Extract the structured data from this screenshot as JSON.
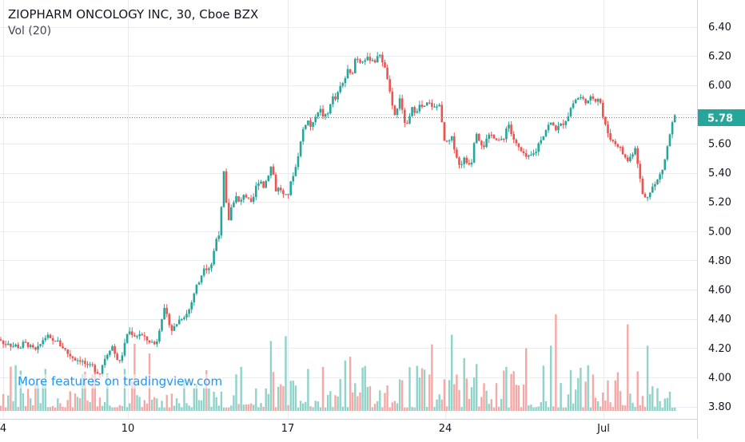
{
  "header": {
    "title": "ZIOPHARM ONCOLOGY INC, 30, Cboe BZX",
    "volume_label": "Vol (20)"
  },
  "promo_text": "More features on tradingview.com",
  "colors": {
    "up": "#26a69a",
    "down": "#ef5350",
    "vol_up": "#8fd3c9",
    "vol_down": "#f5a9a6",
    "grid": "#e9ecf1",
    "price_line": "#26a69a",
    "axis_text": "#131722"
  },
  "chart_data": {
    "type": "candlestick",
    "title": "ZIOPHARM ONCOLOGY INC, 30, Cboe BZX",
    "price_axis": {
      "ticks": [
        "6.40",
        "6.20",
        "6.00",
        "5.80",
        "5.60",
        "5.40",
        "5.20",
        "5.00",
        "4.80",
        "4.60",
        "4.40",
        "4.20",
        "4.00",
        "3.80"
      ],
      "range": [
        3.78,
        6.46
      ]
    },
    "time_axis": {
      "labels": [
        "4",
        "10",
        "17",
        "24",
        "Jul"
      ]
    },
    "last_price": {
      "value": 5.78,
      "label": "5.78"
    },
    "volume_indicator": "Vol (20)",
    "grid": true,
    "price_path": [
      [
        0,
        4.26
      ],
      [
        5,
        4.22
      ],
      [
        10,
        4.24
      ],
      [
        15,
        4.21
      ],
      [
        20,
        4.22
      ],
      [
        25,
        4.2
      ],
      [
        30,
        4.24
      ],
      [
        35,
        4.22
      ],
      [
        40,
        4.2
      ],
      [
        45,
        4.18
      ],
      [
        50,
        4.22
      ],
      [
        55,
        4.27
      ],
      [
        60,
        4.28
      ],
      [
        65,
        4.24
      ],
      [
        70,
        4.26
      ],
      [
        75,
        4.22
      ],
      [
        80,
        4.2
      ],
      [
        85,
        4.16
      ],
      [
        90,
        4.14
      ],
      [
        95,
        4.12
      ],
      [
        100,
        4.12
      ],
      [
        105,
        4.1
      ],
      [
        110,
        4.07
      ],
      [
        115,
        4.08
      ],
      [
        120,
        4.04
      ],
      [
        125,
        4.03
      ],
      [
        130,
        4.12
      ],
      [
        135,
        4.17
      ],
      [
        140,
        4.22
      ],
      [
        145,
        4.14
      ],
      [
        150,
        4.1
      ],
      [
        155,
        4.2
      ],
      [
        160,
        4.32
      ],
      [
        165,
        4.3
      ],
      [
        170,
        4.28
      ],
      [
        175,
        4.3
      ],
      [
        180,
        4.27
      ],
      [
        185,
        4.25
      ],
      [
        190,
        4.24
      ],
      [
        195,
        4.22
      ],
      [
        200,
        4.35
      ],
      [
        205,
        4.47
      ],
      [
        210,
        4.4
      ],
      [
        215,
        4.32
      ],
      [
        220,
        4.36
      ],
      [
        225,
        4.4
      ],
      [
        230,
        4.42
      ],
      [
        235,
        4.44
      ],
      [
        240,
        4.52
      ],
      [
        245,
        4.62
      ],
      [
        250,
        4.66
      ],
      [
        255,
        4.76
      ],
      [
        260,
        4.74
      ],
      [
        265,
        4.78
      ],
      [
        270,
        4.94
      ],
      [
        275,
        5.0
      ],
      [
        280,
        5.4
      ],
      [
        285,
        5.05
      ],
      [
        290,
        5.18
      ],
      [
        295,
        5.24
      ],
      [
        300,
        5.18
      ],
      [
        305,
        5.26
      ],
      [
        310,
        5.22
      ],
      [
        315,
        5.18
      ],
      [
        320,
        5.3
      ],
      [
        325,
        5.36
      ],
      [
        330,
        5.3
      ],
      [
        335,
        5.38
      ],
      [
        340,
        5.46
      ],
      [
        345,
        5.28
      ],
      [
        350,
        5.3
      ],
      [
        355,
        5.24
      ],
      [
        360,
        5.24
      ],
      [
        365,
        5.36
      ],
      [
        370,
        5.44
      ],
      [
        375,
        5.58
      ],
      [
        380,
        5.72
      ],
      [
        385,
        5.76
      ],
      [
        390,
        5.7
      ],
      [
        395,
        5.8
      ],
      [
        400,
        5.84
      ],
      [
        405,
        5.78
      ],
      [
        410,
        5.8
      ],
      [
        415,
        5.92
      ],
      [
        420,
        5.9
      ],
      [
        425,
        5.98
      ],
      [
        430,
        6.02
      ],
      [
        435,
        6.1
      ],
      [
        440,
        6.06
      ],
      [
        445,
        6.2
      ],
      [
        450,
        6.16
      ],
      [
        455,
        6.18
      ],
      [
        460,
        6.18
      ],
      [
        465,
        6.18
      ],
      [
        470,
        6.16
      ],
      [
        475,
        6.22
      ],
      [
        480,
        6.14
      ],
      [
        485,
        6.04
      ],
      [
        490,
        5.86
      ],
      [
        495,
        5.78
      ],
      [
        500,
        5.92
      ],
      [
        505,
        5.76
      ],
      [
        510,
        5.72
      ],
      [
        515,
        5.84
      ],
      [
        520,
        5.82
      ],
      [
        525,
        5.86
      ],
      [
        530,
        5.84
      ],
      [
        535,
        5.88
      ],
      [
        540,
        5.86
      ],
      [
        545,
        5.84
      ],
      [
        550,
        5.88
      ],
      [
        555,
        5.62
      ],
      [
        560,
        5.6
      ],
      [
        565,
        5.64
      ],
      [
        570,
        5.54
      ],
      [
        575,
        5.44
      ],
      [
        580,
        5.5
      ],
      [
        585,
        5.46
      ],
      [
        590,
        5.48
      ],
      [
        595,
        5.7
      ],
      [
        600,
        5.62
      ],
      [
        605,
        5.58
      ],
      [
        610,
        5.64
      ],
      [
        615,
        5.66
      ],
      [
        620,
        5.64
      ],
      [
        625,
        5.62
      ],
      [
        630,
        5.62
      ],
      [
        635,
        5.76
      ],
      [
        640,
        5.66
      ],
      [
        645,
        5.6
      ],
      [
        650,
        5.56
      ],
      [
        655,
        5.52
      ],
      [
        660,
        5.5
      ],
      [
        665,
        5.52
      ],
      [
        670,
        5.54
      ],
      [
        675,
        5.62
      ],
      [
        680,
        5.66
      ],
      [
        685,
        5.72
      ],
      [
        690,
        5.74
      ],
      [
        695,
        5.7
      ],
      [
        700,
        5.72
      ],
      [
        705,
        5.74
      ],
      [
        710,
        5.78
      ],
      [
        715,
        5.86
      ],
      [
        720,
        5.9
      ],
      [
        725,
        5.92
      ],
      [
        730,
        5.9
      ],
      [
        735,
        5.88
      ],
      [
        740,
        5.92
      ],
      [
        745,
        5.9
      ],
      [
        750,
        5.92
      ],
      [
        755,
        5.76
      ],
      [
        760,
        5.68
      ],
      [
        765,
        5.62
      ],
      [
        770,
        5.6
      ],
      [
        775,
        5.58
      ],
      [
        780,
        5.52
      ],
      [
        785,
        5.48
      ],
      [
        790,
        5.52
      ],
      [
        795,
        5.58
      ],
      [
        800,
        5.38
      ],
      [
        805,
        5.22
      ],
      [
        810,
        5.24
      ],
      [
        815,
        5.3
      ],
      [
        820,
        5.32
      ],
      [
        825,
        5.38
      ],
      [
        830,
        5.44
      ],
      [
        835,
        5.58
      ],
      [
        840,
        5.72
      ],
      [
        845,
        5.8
      ]
    ]
  }
}
